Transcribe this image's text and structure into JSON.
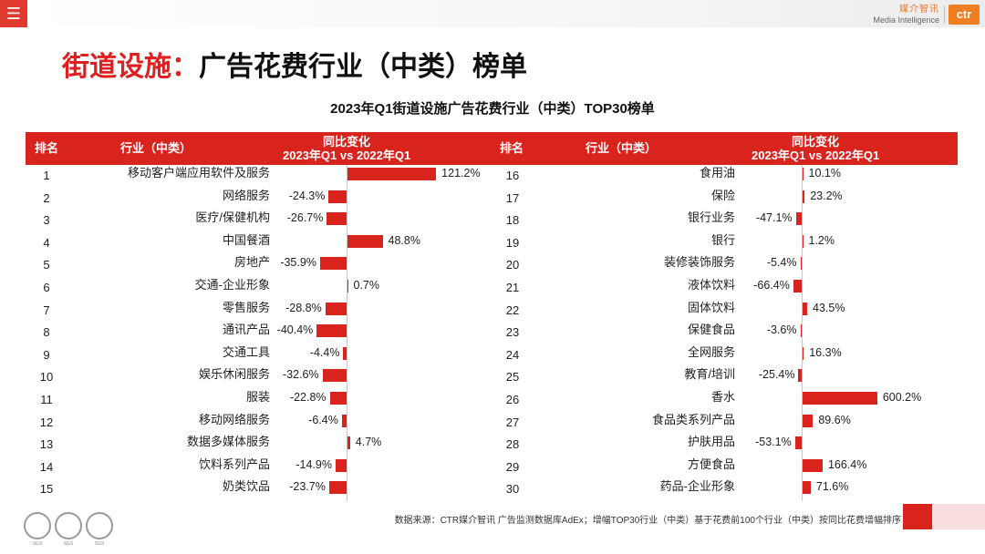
{
  "brand": {
    "name_cn": "媒介智讯",
    "name_en": "Media Intelligence",
    "logo_text": "ctr"
  },
  "page": {
    "title_part1": "街道设施：",
    "title_part2": "广告花费行业（中类）榜单"
  },
  "headers": {
    "rank": "排名",
    "industry": "行业（中类）",
    "change_line1": "同比变化",
    "change_line2": "2023年Q1 vs 2022年Q1"
  },
  "footer": {
    "source": "数据来源：CTR媒介智讯 广告监测数据库AdEx；增幅TOP30行业（中类）基于花费前100个行业（中类）按同比花费增幅排序"
  },
  "seals": [
    "SGS",
    "SGS",
    "SGS"
  ],
  "colors": {
    "accent": "#d9231d",
    "title_red": "#e02020",
    "brand_orange": "#f07f24"
  },
  "chart_data": {
    "type": "bar",
    "title": "2023年Q1街道设施广告花费行业（中类）TOP30榜单",
    "unit": "%",
    "orientation": "horizontal",
    "rows": [
      {
        "rank": 1,
        "industry": "移动客户端应用软件及服务",
        "change": 121.2
      },
      {
        "rank": 2,
        "industry": "网络服务",
        "change": -24.3
      },
      {
        "rank": 3,
        "industry": "医疗/保健机构",
        "change": -26.7
      },
      {
        "rank": 4,
        "industry": "中国餐酒",
        "change": 48.8
      },
      {
        "rank": 5,
        "industry": "房地产",
        "change": -35.9
      },
      {
        "rank": 6,
        "industry": "交通-企业形象",
        "change": 0.7
      },
      {
        "rank": 7,
        "industry": "零售服务",
        "change": -28.8
      },
      {
        "rank": 8,
        "industry": "通讯产品",
        "change": -40.4
      },
      {
        "rank": 9,
        "industry": "交通工具",
        "change": -4.4
      },
      {
        "rank": 10,
        "industry": "娱乐休闲服务",
        "change": -32.6
      },
      {
        "rank": 11,
        "industry": "服装",
        "change": -22.8
      },
      {
        "rank": 12,
        "industry": "移动网络服务",
        "change": -6.4
      },
      {
        "rank": 13,
        "industry": "数据多媒体服务",
        "change": 4.7
      },
      {
        "rank": 14,
        "industry": "饮料系列产品",
        "change": -14.9
      },
      {
        "rank": 15,
        "industry": "奶类饮品",
        "change": -23.7
      },
      {
        "rank": 16,
        "industry": "食用油",
        "change": 10.1
      },
      {
        "rank": 17,
        "industry": "保险",
        "change": 23.2
      },
      {
        "rank": 18,
        "industry": "银行业务",
        "change": -47.1
      },
      {
        "rank": 19,
        "industry": "银行",
        "change": 1.2
      },
      {
        "rank": 20,
        "industry": "装修装饰服务",
        "change": -5.4
      },
      {
        "rank": 21,
        "industry": "液体饮料",
        "change": -66.4
      },
      {
        "rank": 22,
        "industry": "固体饮料",
        "change": 43.5
      },
      {
        "rank": 23,
        "industry": "保健食品",
        "change": -3.6
      },
      {
        "rank": 24,
        "industry": "全网服务",
        "change": 16.3
      },
      {
        "rank": 25,
        "industry": "教育/培训",
        "change": -25.4
      },
      {
        "rank": 26,
        "industry": "香水",
        "change": 600.2
      },
      {
        "rank": 27,
        "industry": "食品类系列产品",
        "change": 89.6
      },
      {
        "rank": 28,
        "industry": "护肤用品",
        "change": -53.1
      },
      {
        "rank": 29,
        "industry": "方便食品",
        "change": 166.4
      },
      {
        "rank": 30,
        "industry": "药品-企业形象",
        "change": 71.6
      }
    ]
  }
}
